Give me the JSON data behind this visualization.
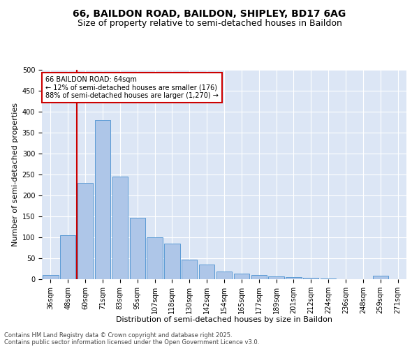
{
  "title1": "66, BAILDON ROAD, BAILDON, SHIPLEY, BD17 6AG",
  "title2": "Size of property relative to semi-detached houses in Baildon",
  "xlabel": "Distribution of semi-detached houses by size in Baildon",
  "ylabel": "Number of semi-detached properties",
  "categories": [
    "36sqm",
    "48sqm",
    "60sqm",
    "71sqm",
    "83sqm",
    "95sqm",
    "107sqm",
    "118sqm",
    "130sqm",
    "142sqm",
    "154sqm",
    "165sqm",
    "177sqm",
    "189sqm",
    "201sqm",
    "212sqm",
    "224sqm",
    "236sqm",
    "248sqm",
    "259sqm",
    "271sqm"
  ],
  "values": [
    10,
    105,
    230,
    380,
    245,
    147,
    100,
    85,
    46,
    35,
    18,
    14,
    10,
    6,
    5,
    4,
    1,
    0,
    0,
    8,
    0
  ],
  "bar_color": "#aec6e8",
  "bar_edge_color": "#5b9bd5",
  "vline_color": "#cc0000",
  "annotation_box_color": "#cc0000",
  "background_color": "#dce6f5",
  "ylim": [
    0,
    500
  ],
  "yticks": [
    0,
    50,
    100,
    150,
    200,
    250,
    300,
    350,
    400,
    450,
    500
  ],
  "footer": "Contains HM Land Registry data © Crown copyright and database right 2025.\nContains public sector information licensed under the Open Government Licence v3.0.",
  "title_fontsize": 10,
  "subtitle_fontsize": 9,
  "tick_fontsize": 7,
  "axis_label_fontsize": 8,
  "footer_fontsize": 6
}
